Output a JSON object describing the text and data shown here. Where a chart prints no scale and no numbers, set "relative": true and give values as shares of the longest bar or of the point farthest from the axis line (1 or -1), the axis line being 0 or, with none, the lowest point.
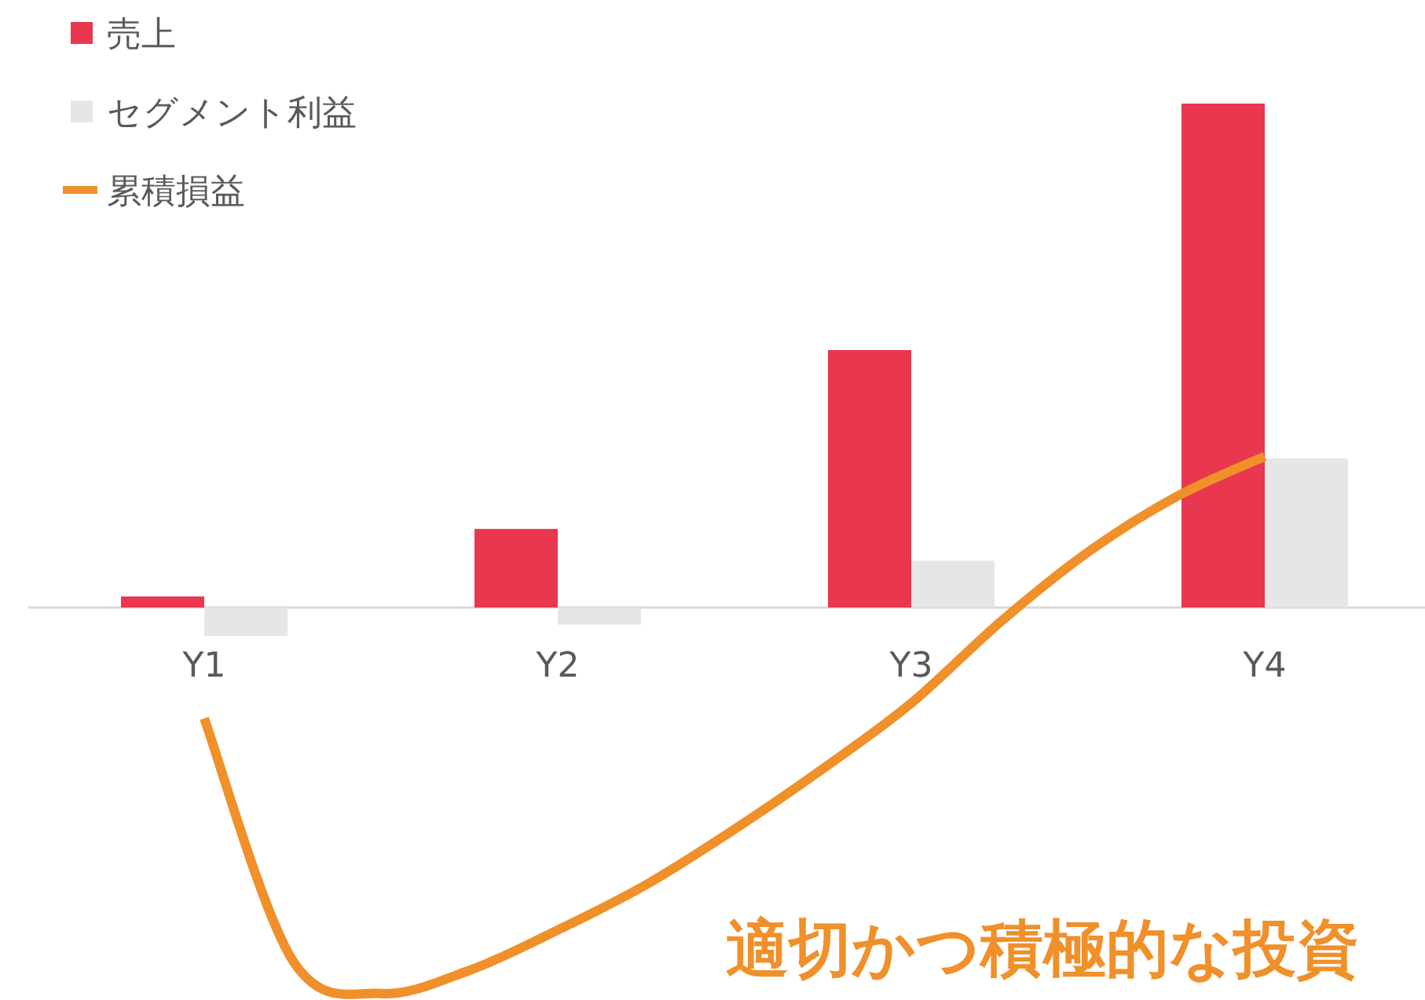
{
  "chart_data": {
    "type": "bar",
    "relative": true,
    "legend": "top left",
    "categories": [
      "Y1",
      null,
      null,
      null,
      "Y2",
      null,
      null,
      null,
      "Y3",
      null,
      null,
      null,
      "Y4"
    ],
    "series": [
      {
        "name": "売上",
        "color": "#e8374e",
        "values": [
          0.022,
          null,
          null,
          null,
          0.156,
          null,
          null,
          null,
          0.511,
          null,
          null,
          null,
          1
        ]
      },
      {
        "name": "セグメント利益",
        "color": "#e6e6e6",
        "values": [
          -0.056,
          null,
          null,
          null,
          -0.034,
          null,
          null,
          null,
          0.093,
          null,
          null,
          null,
          0.296
        ]
      },
      {
        "name": "累積損益",
        "type": "line",
        "color": "#f0902a",
        "values": [
          -0.22,
          -0.7,
          -0.766,
          -0.72,
          -0.64,
          -0.55,
          -0.44,
          -0.32,
          -0.19,
          -0.03,
          0.11,
          0.22,
          0.3
        ]
      }
    ],
    "annotations": [
      "適切かつ積極的な投資"
    ]
  }
}
